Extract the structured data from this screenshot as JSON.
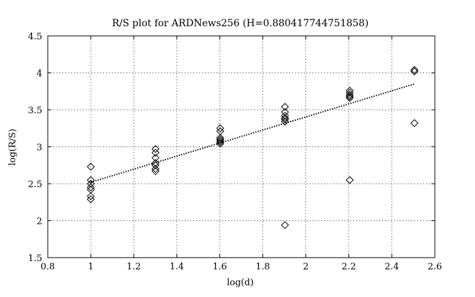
{
  "chart_data": {
    "type": "scatter",
    "title": "R/S plot for ARDNews256 (H=0.880417744751858)",
    "xlabel": "log(d)",
    "ylabel": "log(R/S)",
    "xlim": [
      0.8,
      2.6
    ],
    "ylim": [
      1.5,
      4.5
    ],
    "x_ticks": [
      0.8,
      1,
      1.2,
      1.4,
      1.6,
      1.8,
      2,
      2.2,
      2.4,
      2.6
    ],
    "y_ticks": [
      1.5,
      2,
      2.5,
      3,
      3.5,
      4,
      4.5
    ],
    "x_tick_labels": [
      "0.8",
      "1",
      "1.2",
      "1.4",
      "1.6",
      "1.8",
      "2",
      "2.2",
      "2.4",
      "2.6"
    ],
    "y_tick_labels": [
      "1.5",
      "2",
      "2.5",
      "3",
      "3.5",
      "4",
      "4.5"
    ],
    "grid": true,
    "marker": "diamond",
    "points": [
      {
        "x": 1.0,
        "y": 2.73
      },
      {
        "x": 1.0,
        "y": 2.55
      },
      {
        "x": 1.0,
        "y": 2.5
      },
      {
        "x": 1.0,
        "y": 2.45
      },
      {
        "x": 1.0,
        "y": 2.42
      },
      {
        "x": 1.0,
        "y": 2.33
      },
      {
        "x": 1.0,
        "y": 2.29
      },
      {
        "x": 1.301,
        "y": 2.97
      },
      {
        "x": 1.301,
        "y": 2.92
      },
      {
        "x": 1.301,
        "y": 2.85
      },
      {
        "x": 1.301,
        "y": 2.78
      },
      {
        "x": 1.301,
        "y": 2.75
      },
      {
        "x": 1.301,
        "y": 2.7
      },
      {
        "x": 1.301,
        "y": 2.67
      },
      {
        "x": 1.602,
        "y": 3.25
      },
      {
        "x": 1.602,
        "y": 3.21
      },
      {
        "x": 1.602,
        "y": 3.12
      },
      {
        "x": 1.602,
        "y": 3.1
      },
      {
        "x": 1.602,
        "y": 3.08
      },
      {
        "x": 1.602,
        "y": 3.06
      },
      {
        "x": 1.602,
        "y": 3.04
      },
      {
        "x": 1.903,
        "y": 3.54
      },
      {
        "x": 1.903,
        "y": 3.47
      },
      {
        "x": 1.903,
        "y": 3.42
      },
      {
        "x": 1.903,
        "y": 3.39
      },
      {
        "x": 1.903,
        "y": 3.37
      },
      {
        "x": 1.903,
        "y": 3.34
      },
      {
        "x": 1.903,
        "y": 1.94
      },
      {
        "x": 2.204,
        "y": 3.76
      },
      {
        "x": 2.204,
        "y": 3.73
      },
      {
        "x": 2.204,
        "y": 3.7
      },
      {
        "x": 2.204,
        "y": 3.68
      },
      {
        "x": 2.204,
        "y": 3.66
      },
      {
        "x": 2.204,
        "y": 2.55
      },
      {
        "x": 2.505,
        "y": 4.04
      },
      {
        "x": 2.505,
        "y": 4.02
      },
      {
        "x": 2.505,
        "y": 3.32
      }
    ],
    "fit_line": {
      "style": "dotted",
      "x": [
        1.0,
        2.505
      ],
      "y": [
        2.52,
        3.85
      ]
    }
  }
}
